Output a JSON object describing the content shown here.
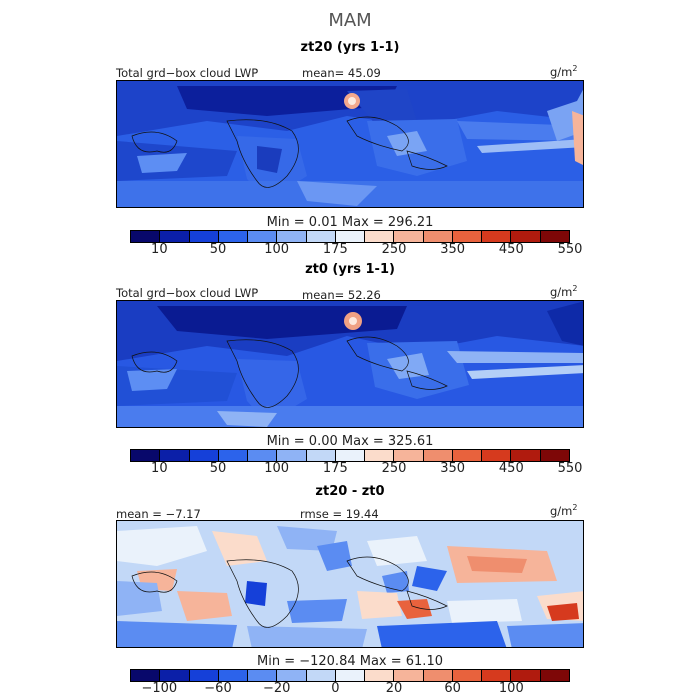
{
  "season": "MAM",
  "panels": [
    {
      "title": "zt20 (yrs 1-1)",
      "left_label": "Total grd−box cloud LWP",
      "mean_text": "mean=  45.09",
      "unit_base": "g/m",
      "unit_exp": "2",
      "minmax_text": "Min =    0.01 Max = 296.21",
      "colorbar": {
        "colors": [
          "#08086b",
          "#0b1fa8",
          "#1540d9",
          "#2c63eb",
          "#5b8cf2",
          "#8fb3f5",
          "#c2d8f7",
          "#eaf2fb",
          "#fbdccb",
          "#f6b49a",
          "#ef8e6e",
          "#e8623d",
          "#d63a1e",
          "#b01b0e",
          "#7e0707"
        ],
        "ticks": [
          "10",
          "50",
          "100",
          "175",
          "250",
          "350",
          "450",
          "550"
        ]
      }
    },
    {
      "title": "zt0 (yrs 1-1)",
      "left_label": "Total grd−box cloud LWP",
      "mean_text": "mean=  52.26",
      "unit_base": "g/m",
      "unit_exp": "2",
      "minmax_text": "Min =    0.00 Max = 325.61",
      "colorbar": {
        "colors": [
          "#08086b",
          "#0b1fa8",
          "#1540d9",
          "#2c63eb",
          "#5b8cf2",
          "#8fb3f5",
          "#c2d8f7",
          "#eaf2fb",
          "#fbdccb",
          "#f6b49a",
          "#ef8e6e",
          "#e8623d",
          "#d63a1e",
          "#b01b0e",
          "#7e0707"
        ],
        "ticks": [
          "10",
          "50",
          "100",
          "175",
          "250",
          "350",
          "450",
          "550"
        ]
      }
    },
    {
      "title": "zt20 - zt0",
      "left_label": "mean =  −7.17",
      "mid_label": "rmse =  19.44",
      "unit_base": "g/m",
      "unit_exp": "2",
      "minmax_text": "Min = −120.84 Max =  61.10",
      "colorbar": {
        "colors": [
          "#08086b",
          "#0b1fa8",
          "#1540d9",
          "#2c63eb",
          "#5b8cf2",
          "#8fb3f5",
          "#c2d8f7",
          "#eaf2fb",
          "#fbdccb",
          "#f6b49a",
          "#ef8e6e",
          "#e8623d",
          "#d63a1e",
          "#b01b0e",
          "#7e0707"
        ],
        "ticks": [
          "−100",
          "−60",
          "−20",
          "0",
          "20",
          "60",
          "100"
        ]
      }
    }
  ]
}
